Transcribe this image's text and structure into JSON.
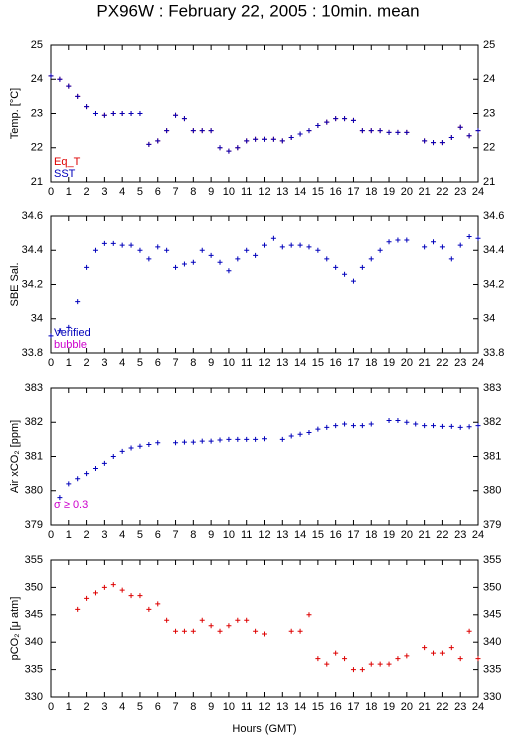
{
  "title": "PX96W : February 22, 2005 : 10min. mean",
  "chart_data": [
    {
      "type": "scatter",
      "ylabel": "Temp. [°C]",
      "legend": "lower left",
      "x": [
        0,
        0.5,
        1,
        1.5,
        2,
        2.5,
        3,
        3.5,
        4,
        4.5,
        5,
        5.5,
        6,
        6.5,
        7,
        7.5,
        8,
        8.5,
        9,
        9.5,
        10,
        10.5,
        11,
        11.5,
        12,
        12.5,
        13,
        13.5,
        14,
        14.5,
        15,
        15.5,
        16,
        16.5,
        17,
        17.5,
        18,
        18.5,
        19,
        19.5,
        20,
        20.5,
        21,
        21.5,
        22,
        22.5,
        23,
        23.5,
        24
      ],
      "series": [
        {
          "name": "Eq_T",
          "color": "#dd0000",
          "values": [
            24.1,
            24.0,
            23.8,
            23.5,
            23.2,
            23.0,
            22.95,
            23.0,
            23.0,
            23.0,
            23.0,
            22.1,
            22.2,
            22.5,
            22.95,
            22.85,
            22.5,
            22.5,
            22.5,
            22.0,
            21.9,
            22.0,
            22.2,
            22.25,
            22.25,
            22.25,
            22.2,
            22.3,
            22.4,
            22.5,
            22.65,
            22.75,
            22.85,
            22.85,
            22.8,
            22.5,
            22.5,
            22.5,
            22.45,
            22.45,
            22.45,
            null,
            22.2,
            22.15,
            22.15,
            22.3,
            22.6,
            22.35,
            22.5
          ]
        },
        {
          "name": "SST",
          "color": "#0000bb",
          "values": [
            24.1,
            24.0,
            23.8,
            23.5,
            23.2,
            23.0,
            22.95,
            23.0,
            23.0,
            23.0,
            23.0,
            22.1,
            22.2,
            22.5,
            22.95,
            22.85,
            22.5,
            22.5,
            22.5,
            22.0,
            21.9,
            22.0,
            22.2,
            22.25,
            22.25,
            22.25,
            22.2,
            22.3,
            22.4,
            22.5,
            22.65,
            22.75,
            22.85,
            22.85,
            22.8,
            22.5,
            22.5,
            22.5,
            22.45,
            22.45,
            22.45,
            null,
            22.2,
            22.15,
            22.15,
            22.3,
            22.6,
            22.35,
            22.5
          ]
        }
      ],
      "xlim": [
        0,
        24
      ],
      "xticks": [
        0,
        1,
        2,
        3,
        4,
        5,
        6,
        7,
        8,
        9,
        10,
        11,
        12,
        13,
        14,
        15,
        16,
        17,
        18,
        19,
        20,
        21,
        22,
        23,
        24
      ],
      "ylim": [
        21,
        25
      ],
      "yticks": [
        21,
        22,
        23,
        24,
        25
      ]
    },
    {
      "type": "scatter",
      "ylabel": "SBE Sal.",
      "legend": "lower left",
      "x": [
        0,
        0.5,
        1,
        1.5,
        2,
        2.5,
        3,
        3.5,
        4,
        4.5,
        5,
        5.5,
        6,
        6.5,
        7,
        7.5,
        8,
        8.5,
        9,
        9.5,
        10,
        10.5,
        11,
        11.5,
        12,
        12.5,
        13,
        13.5,
        14,
        14.5,
        15,
        15.5,
        16,
        16.5,
        17,
        17.5,
        18,
        18.5,
        19,
        19.5,
        20,
        20.5,
        21,
        21.5,
        22,
        22.5,
        23,
        23.5,
        24
      ],
      "series": [
        {
          "name": "Verified",
          "color": "#0000bb",
          "values": [
            33.9,
            33.93,
            33.95,
            34.1,
            34.3,
            34.4,
            34.44,
            34.44,
            34.43,
            34.43,
            34.4,
            34.35,
            34.42,
            34.4,
            34.3,
            34.32,
            34.33,
            34.4,
            34.37,
            34.33,
            34.28,
            34.35,
            34.4,
            34.37,
            34.43,
            34.47,
            34.42,
            34.43,
            34.43,
            34.42,
            34.4,
            34.35,
            34.3,
            34.26,
            34.22,
            34.3,
            34.35,
            34.4,
            34.45,
            34.46,
            34.46,
            null,
            34.42,
            34.45,
            34.42,
            34.35,
            34.43,
            34.48,
            34.47
          ]
        },
        {
          "name": "bubble",
          "color": "#cc00cc",
          "values": [
            null,
            null,
            null,
            null,
            null,
            null,
            null,
            null,
            null,
            null,
            null,
            null,
            null,
            null,
            null,
            null,
            null,
            null,
            null,
            null,
            null,
            null,
            null,
            null,
            null,
            null,
            null,
            null,
            null,
            null,
            null,
            null,
            null,
            null,
            null,
            null,
            null,
            null,
            null,
            null,
            null,
            null,
            null,
            null,
            null,
            null,
            null,
            null,
            null
          ]
        }
      ],
      "xlim": [
        0,
        24
      ],
      "xticks": [
        0,
        1,
        2,
        3,
        4,
        5,
        6,
        7,
        8,
        9,
        10,
        11,
        12,
        13,
        14,
        15,
        16,
        17,
        18,
        19,
        20,
        21,
        22,
        23,
        24
      ],
      "ylim": [
        33.8,
        34.6
      ],
      "yticks": [
        33.8,
        34,
        34.2,
        34.4,
        34.6
      ]
    },
    {
      "type": "scatter",
      "ylabel": "Air xCO₂ [ppm]",
      "annotation": "σ ≥ 0.3",
      "annotation_color": "#cc00cc",
      "color": "#0000bb",
      "x": [
        0,
        0.5,
        1,
        1.5,
        2,
        2.5,
        3,
        3.5,
        4,
        4.5,
        5,
        5.5,
        6,
        6.5,
        7,
        7.5,
        8,
        8.5,
        9,
        9.5,
        10,
        10.5,
        11,
        11.5,
        12,
        12.5,
        13,
        13.5,
        14,
        14.5,
        15,
        15.5,
        16,
        16.5,
        17,
        17.5,
        18,
        18.5,
        19,
        19.5,
        20,
        20.5,
        21,
        21.5,
        22,
        22.5,
        23,
        23.5,
        24
      ],
      "values": [
        null,
        379.8,
        380.2,
        380.35,
        380.5,
        380.65,
        380.8,
        381.0,
        381.15,
        381.25,
        381.3,
        381.35,
        381.4,
        null,
        381.4,
        381.42,
        381.42,
        381.45,
        381.45,
        381.48,
        381.5,
        381.5,
        381.5,
        381.5,
        381.52,
        null,
        381.5,
        381.6,
        381.65,
        381.7,
        381.8,
        381.85,
        381.9,
        381.95,
        381.9,
        381.9,
        381.95,
        null,
        382.05,
        382.05,
        382.0,
        381.95,
        381.9,
        381.9,
        381.88,
        381.88,
        381.85,
        381.87,
        381.9
      ],
      "xlim": [
        0,
        24
      ],
      "xticks": [
        0,
        1,
        2,
        3,
        4,
        5,
        6,
        7,
        8,
        9,
        10,
        11,
        12,
        13,
        14,
        15,
        16,
        17,
        18,
        19,
        20,
        21,
        22,
        23,
        24
      ],
      "ylim": [
        379,
        383
      ],
      "yticks": [
        379,
        380,
        381,
        382,
        383
      ]
    },
    {
      "type": "scatter",
      "ylabel": "pCO₂ [μ atm]",
      "xlabel": "Hours (GMT)",
      "color": "#dd0000",
      "x": [
        0,
        0.5,
        1,
        1.5,
        2,
        2.5,
        3,
        3.5,
        4,
        4.5,
        5,
        5.5,
        6,
        6.5,
        7,
        7.5,
        8,
        8.5,
        9,
        9.5,
        10,
        10.5,
        11,
        11.5,
        12,
        12.5,
        13,
        13.5,
        14,
        14.5,
        15,
        15.5,
        16,
        16.5,
        17,
        17.5,
        18,
        18.5,
        19,
        19.5,
        20,
        20.5,
        21,
        21.5,
        22,
        22.5,
        23,
        23.5,
        24
      ],
      "values": [
        null,
        null,
        null,
        346,
        348,
        349,
        350,
        350.5,
        349.5,
        348.5,
        348.5,
        346,
        347,
        344,
        342,
        342,
        342,
        344,
        343,
        342,
        343,
        344,
        344,
        342,
        341.5,
        null,
        null,
        342,
        342,
        345,
        337,
        336,
        338,
        337,
        335,
        335,
        336,
        336,
        336,
        337,
        337.5,
        null,
        339,
        338,
        338,
        339,
        337,
        342,
        337
      ],
      "xlim": [
        0,
        24
      ],
      "xticks": [
        0,
        1,
        2,
        3,
        4,
        5,
        6,
        7,
        8,
        9,
        10,
        11,
        12,
        13,
        14,
        15,
        16,
        17,
        18,
        19,
        20,
        21,
        22,
        23,
        24
      ],
      "ylim": [
        330,
        355
      ],
      "yticks": [
        330,
        335,
        340,
        345,
        350,
        355
      ]
    }
  ]
}
